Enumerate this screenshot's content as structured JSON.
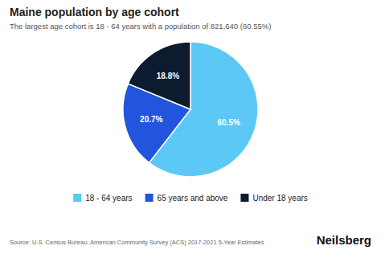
{
  "chart_data": {
    "type": "pie",
    "title": "Maine population by age cohort",
    "subtitle": "The largest age cohort is 18 - 64 years with a population of 821,640 (60.55%)",
    "categories": [
      "18 - 64 years",
      "65 years and above",
      "Under 18 years"
    ],
    "values": [
      60.5,
      20.7,
      18.8
    ],
    "value_labels": [
      "60.5%",
      "20.7%",
      "18.8%"
    ],
    "colors": [
      "#5bc8f5",
      "#2255dd",
      "#0d1b2e"
    ],
    "data_labels": true,
    "legend": "bottom",
    "annotations": [
      "Source: U.S. Census Bureau, American Community Survey (ACS) 2017-2021 5-Year Estimates",
      "Neilsberg"
    ]
  }
}
